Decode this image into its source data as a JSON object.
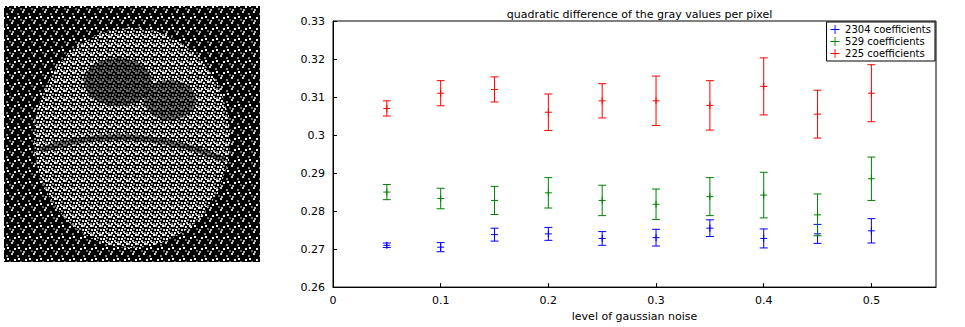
{
  "chart_data": {
    "type": "scatter",
    "title": "quadratic difference of the gray values per pixel",
    "x_label": "level of gaussian noise",
    "x": [
      0.05,
      0.1,
      0.15,
      0.2,
      0.25,
      0.3,
      0.35,
      0.4,
      0.45,
      0.5
    ],
    "series": [
      {
        "name": "2304 coefficients",
        "color": "#0000ff",
        "values": [
          0.271,
          0.2705,
          0.2738,
          0.274,
          0.2728,
          0.273,
          0.2755,
          0.2728,
          0.274,
          0.2748
        ],
        "errors": [
          0.0006,
          0.0012,
          0.0017,
          0.0017,
          0.0018,
          0.0022,
          0.0022,
          0.0025,
          0.0025,
          0.0032
        ]
      },
      {
        "name": "529 coefficients",
        "color": "#008000",
        "values": [
          0.285,
          0.2833,
          0.2828,
          0.2848,
          0.2828,
          0.2818,
          0.2838,
          0.2842,
          0.279,
          0.2885
        ],
        "errors": [
          0.002,
          0.0027,
          0.0037,
          0.004,
          0.004,
          0.004,
          0.005,
          0.006,
          0.0055,
          0.0057
        ]
      },
      {
        "name": "225 coefficients",
        "color": "#ff0000",
        "values": [
          0.307,
          0.311,
          0.312,
          0.306,
          0.309,
          0.309,
          0.3078,
          0.3128,
          0.3055,
          0.311
        ],
        "errors": [
          0.002,
          0.0033,
          0.0033,
          0.0048,
          0.0045,
          0.0065,
          0.0065,
          0.0075,
          0.0063,
          0.0075
        ]
      }
    ],
    "xlim": [
      0,
      0.56
    ],
    "xticks": [
      0,
      0.1,
      0.2,
      0.3,
      0.4,
      0.5
    ],
    "ylim": [
      0.26,
      0.33
    ],
    "yticks": [
      0.26,
      0.27,
      0.28,
      0.29,
      0.3,
      0.31,
      0.32,
      0.33
    ],
    "marker": "plus",
    "legend": "upper right",
    "grid": false
  }
}
